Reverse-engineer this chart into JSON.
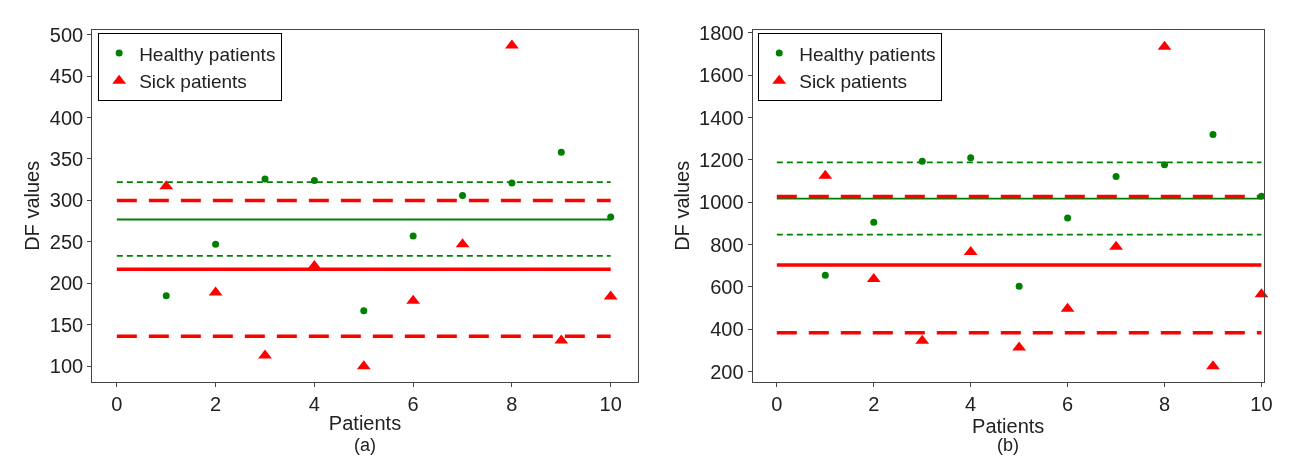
{
  "chart_data": [
    {
      "type": "scatter",
      "xlabel": "Patients",
      "ylabel": "DF values",
      "x": [
        1,
        2,
        3,
        4,
        5,
        6,
        7,
        8,
        9,
        10
      ],
      "series": [
        {
          "name": "Healthy patients",
          "color": "#008000",
          "marker": "circle",
          "values": [
            185,
            247,
            326,
            324,
            167,
            257,
            306,
            321,
            358,
            280
          ]
        },
        {
          "name": "Sick patients",
          "color": "#ff0000",
          "marker": "triangle",
          "values": [
            317,
            189,
            113,
            221,
            100,
            179,
            247,
            487,
            131,
            184
          ]
        }
      ],
      "ref_lines": [
        {
          "axis": "y",
          "value": 277,
          "color": "#008000",
          "line_style": "solid"
        },
        {
          "axis": "y",
          "value": 322,
          "color": "#008000",
          "line_style": "dashed"
        },
        {
          "axis": "y",
          "value": 233,
          "color": "#008000",
          "line_style": "dashed"
        },
        {
          "axis": "y",
          "value": 217,
          "color": "#ff0000",
          "line_style": "solid"
        },
        {
          "axis": "y",
          "value": 300,
          "color": "#ff0000",
          "line_style": "dashed"
        },
        {
          "axis": "y",
          "value": 136,
          "color": "#ff0000",
          "line_style": "dashed"
        }
      ],
      "xlim": [
        -0.5,
        10.55
      ],
      "xticks": [
        0,
        2,
        4,
        6,
        8,
        10
      ],
      "ylim": [
        81,
        506
      ],
      "yticks": [
        100,
        150,
        200,
        250,
        300,
        350,
        400,
        450,
        500
      ],
      "grid": false,
      "legend": "top left",
      "annotations": [
        "(a)"
      ]
    },
    {
      "type": "scatter",
      "xlabel": "Patients",
      "ylabel": "DF values",
      "x": [
        1,
        2,
        3,
        4,
        5,
        6,
        7,
        8,
        9,
        10
      ],
      "series": [
        {
          "name": "Healthy patients",
          "color": "#008000",
          "marker": "circle",
          "values": [
            655,
            905,
            1193,
            1210,
            603,
            925,
            1122,
            1177,
            1320,
            1028
          ]
        },
        {
          "name": "Sick patients",
          "color": "#ff0000",
          "marker": "triangle",
          "values": [
            1125,
            637,
            345,
            765,
            313,
            497,
            790,
            1735,
            225,
            565
          ]
        }
      ],
      "ref_lines": [
        {
          "axis": "y",
          "value": 1017,
          "color": "#008000",
          "line_style": "solid"
        },
        {
          "axis": "y",
          "value": 1188,
          "color": "#008000",
          "line_style": "dashed"
        },
        {
          "axis": "y",
          "value": 847,
          "color": "#008000",
          "line_style": "dashed"
        },
        {
          "axis": "y",
          "value": 703,
          "color": "#ff0000",
          "line_style": "solid"
        },
        {
          "axis": "y",
          "value": 1027,
          "color": "#ff0000",
          "line_style": "dashed"
        },
        {
          "axis": "y",
          "value": 383,
          "color": "#ff0000",
          "line_style": "dashed"
        }
      ],
      "xlim": [
        -0.5,
        10.05
      ],
      "xticks": [
        0,
        2,
        4,
        6,
        8,
        10
      ],
      "ylim": [
        151,
        1815
      ],
      "yticks": [
        200,
        400,
        600,
        800,
        1000,
        1200,
        1400,
        1600,
        1800
      ],
      "grid": false,
      "legend": "top left",
      "annotations": [
        "(b)"
      ]
    }
  ]
}
